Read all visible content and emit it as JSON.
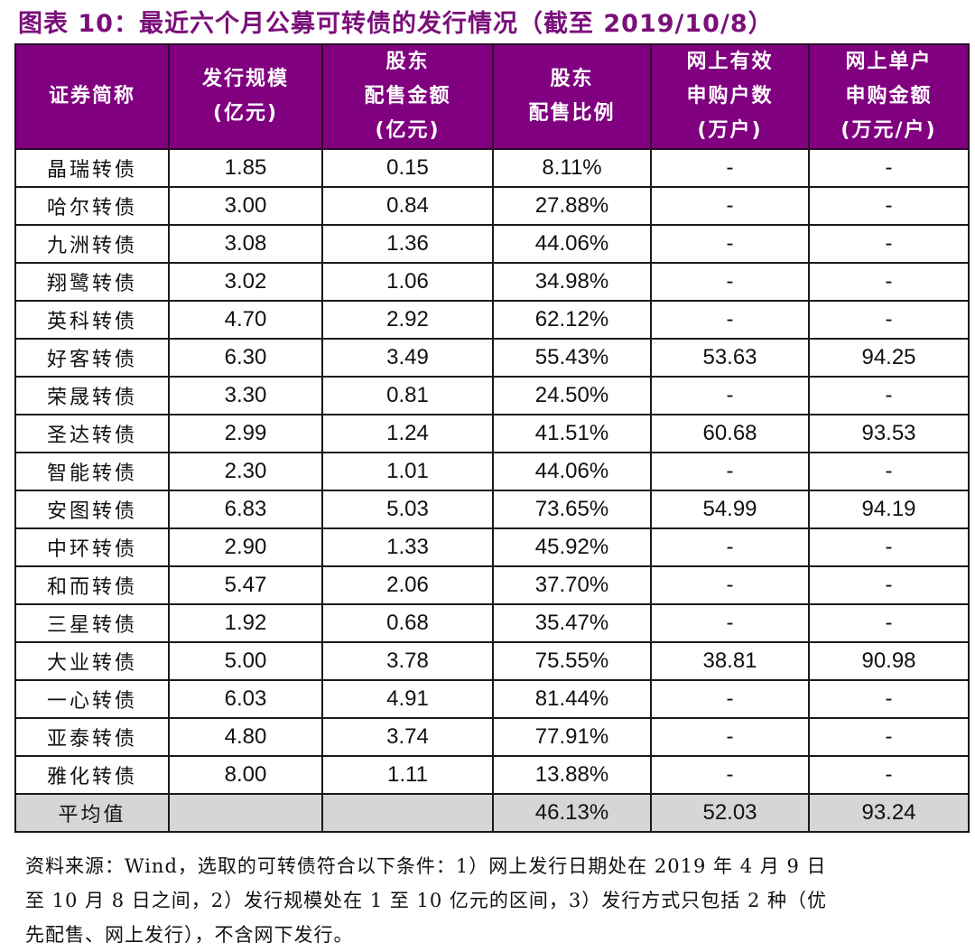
{
  "title": "图表 10：最近六个月公募可转债的发行情况（截至 2019/10/8）",
  "table": {
    "headers": [
      {
        "lines": [
          "证券简称"
        ]
      },
      {
        "lines": [
          "发行规模",
          "(亿元)"
        ]
      },
      {
        "lines": [
          "股东",
          "配售金额",
          "(亿元)"
        ]
      },
      {
        "lines": [
          "股东",
          "配售比例"
        ]
      },
      {
        "lines": [
          "网上有效",
          "申购户数",
          "(万户)"
        ]
      },
      {
        "lines": [
          "网上单户",
          "申购金额",
          "(万元/户)"
        ]
      }
    ],
    "rows": [
      [
        "晶瑞转债",
        "1.85",
        "0.15",
        "8.11%",
        "-",
        "-"
      ],
      [
        "哈尔转债",
        "3.00",
        "0.84",
        "27.88%",
        "-",
        "-"
      ],
      [
        "九洲转债",
        "3.08",
        "1.36",
        "44.06%",
        "-",
        "-"
      ],
      [
        "翔鹭转债",
        "3.02",
        "1.06",
        "34.98%",
        "-",
        "-"
      ],
      [
        "英科转债",
        "4.70",
        "2.92",
        "62.12%",
        "-",
        "-"
      ],
      [
        "好客转债",
        "6.30",
        "3.49",
        "55.43%",
        "53.63",
        "94.25"
      ],
      [
        "荣晟转债",
        "3.30",
        "0.81",
        "24.50%",
        "-",
        "-"
      ],
      [
        "圣达转债",
        "2.99",
        "1.24",
        "41.51%",
        "60.68",
        "93.53"
      ],
      [
        "智能转债",
        "2.30",
        "1.01",
        "44.06%",
        "-",
        "-"
      ],
      [
        "安图转债",
        "6.83",
        "5.03",
        "73.65%",
        "54.99",
        "94.19"
      ],
      [
        "中环转债",
        "2.90",
        "1.33",
        "45.92%",
        "-",
        "-"
      ],
      [
        "和而转债",
        "5.47",
        "2.06",
        "37.70%",
        "-",
        "-"
      ],
      [
        "三星转债",
        "1.92",
        "0.68",
        "35.47%",
        "-",
        "-"
      ],
      [
        "大业转债",
        "5.00",
        "3.78",
        "75.55%",
        "38.81",
        "90.98"
      ],
      [
        "一心转债",
        "6.03",
        "4.91",
        "81.44%",
        "-",
        "-"
      ],
      [
        "亚泰转债",
        "4.80",
        "3.74",
        "77.91%",
        "-",
        "-"
      ],
      [
        "雅化转债",
        "8.00",
        "1.11",
        "13.88%",
        "-",
        "-"
      ]
    ],
    "average": [
      "平均值",
      "",
      "",
      "46.13%",
      "52.03",
      "93.24"
    ]
  },
  "note_lines": [
    "资料来源：Wind，选取的可转债符合以下条件：1）网上发行日期处在 2019 年 4 月 9 日",
    "至 10 月 8 日之间，2）发行规模处在 1 至 10 亿元的区间，3）发行方式只包括 2 种（优",
    "先配售、网上发行），不含网下发行。"
  ],
  "colors": {
    "title": "#7a0f7a",
    "header_bg": "#800080",
    "header_text": "#ffffff",
    "average_row_bg": "#d6d6d6"
  }
}
